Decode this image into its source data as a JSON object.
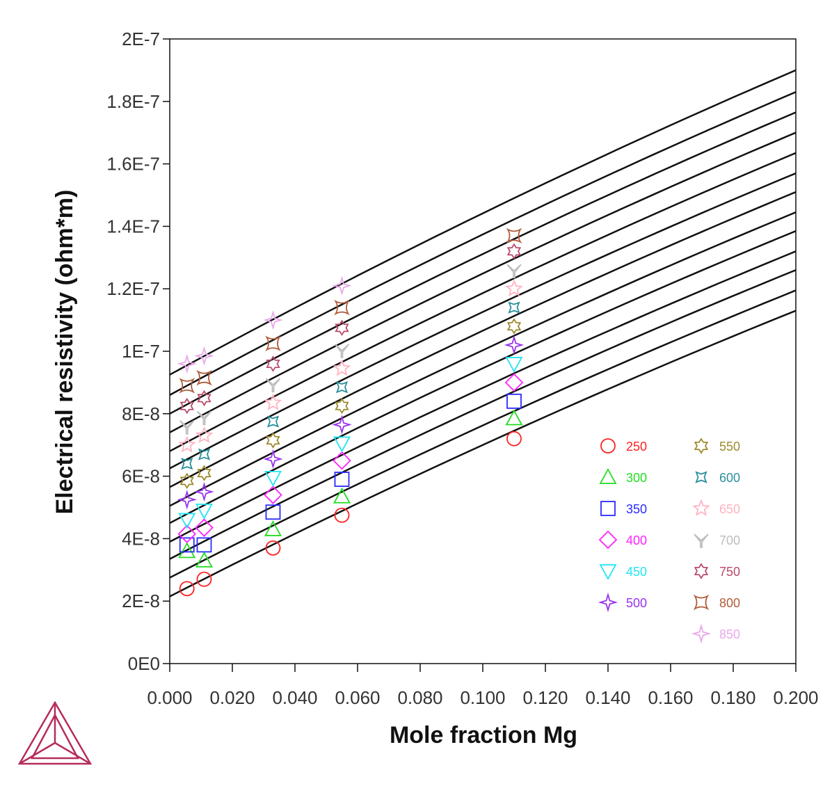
{
  "chart_data": {
    "type": "scatter",
    "xlabel": "Mole fraction Mg",
    "ylabel": "Electrical resistivity (ohm*m)",
    "xlim": [
      0,
      0.2
    ],
    "ylim": [
      0,
      2e-07
    ],
    "xticks": [
      "0.000",
      "0.020",
      "0.040",
      "0.060",
      "0.080",
      "0.100",
      "0.120",
      "0.140",
      "0.160",
      "0.180",
      "0.200"
    ],
    "yticks": [
      "0E0",
      "2E-8",
      "4E-8",
      "6E-8",
      "8E-8",
      "1E-7",
      "1.2E-7",
      "1.4E-7",
      "1.6E-7",
      "1.8E-7",
      "2E-7"
    ],
    "legend_position": "lower-right",
    "grid": false,
    "lines": [
      {
        "y0": 2.15e-08,
        "y1": 1.13e-07
      },
      {
        "y0": 2.75e-08,
        "y1": 1.195e-07
      },
      {
        "y0": 3.35e-08,
        "y1": 1.26e-07
      },
      {
        "y0": 3.9e-08,
        "y1": 1.32e-07
      },
      {
        "y0": 4.5e-08,
        "y1": 1.385e-07
      },
      {
        "y0": 5.05e-08,
        "y1": 1.445e-07
      },
      {
        "y0": 5.65e-08,
        "y1": 1.51e-07
      },
      {
        "y0": 6.25e-08,
        "y1": 1.57e-07
      },
      {
        "y0": 6.8e-08,
        "y1": 1.635e-07
      },
      {
        "y0": 7.4e-08,
        "y1": 1.7e-07
      },
      {
        "y0": 8e-08,
        "y1": 1.765e-07
      },
      {
        "y0": 8.6e-08,
        "y1": 1.83e-07
      },
      {
        "y0": 9.25e-08,
        "y1": 1.9e-07
      }
    ],
    "series": [
      {
        "name": "250",
        "color": "#ff2020",
        "marker": "circle",
        "points": [
          [
            0.0055,
            2.4e-08
          ],
          [
            0.011,
            2.7e-08
          ],
          [
            0.033,
            3.7e-08
          ],
          [
            0.055,
            4.75e-08
          ],
          [
            0.11,
            7.2e-08
          ]
        ]
      },
      {
        "name": "300",
        "color": "#22dd22",
        "marker": "triangle",
        "points": [
          [
            0.0055,
            3.6e-08
          ],
          [
            0.011,
            3.3e-08
          ],
          [
            0.033,
            4.3e-08
          ],
          [
            0.055,
            5.35e-08
          ],
          [
            0.11,
            7.85e-08
          ]
        ]
      },
      {
        "name": "350",
        "color": "#2a2aff",
        "marker": "square",
        "points": [
          [
            0.0055,
            3.8e-08
          ],
          [
            0.011,
            3.8e-08
          ],
          [
            0.033,
            4.85e-08
          ],
          [
            0.055,
            5.9e-08
          ],
          [
            0.11,
            8.4e-08
          ]
        ]
      },
      {
        "name": "400",
        "color": "#ff22ff",
        "marker": "diamond",
        "points": [
          [
            0.0055,
            4.15e-08
          ],
          [
            0.011,
            4.35e-08
          ],
          [
            0.033,
            5.4e-08
          ],
          [
            0.055,
            6.5e-08
          ],
          [
            0.11,
            9e-08
          ]
        ]
      },
      {
        "name": "450",
        "color": "#22e5f5",
        "marker": "triangle-down",
        "points": [
          [
            0.0055,
            4.6e-08
          ],
          [
            0.011,
            4.9e-08
          ],
          [
            0.033,
            5.95e-08
          ],
          [
            0.055,
            7.05e-08
          ],
          [
            0.11,
            9.6e-08
          ]
        ]
      },
      {
        "name": "500",
        "color": "#9933ee",
        "marker": "star4",
        "points": [
          [
            0.0055,
            5.25e-08
          ],
          [
            0.011,
            5.5e-08
          ],
          [
            0.033,
            6.55e-08
          ],
          [
            0.055,
            7.65e-08
          ],
          [
            0.11,
            1.02e-07
          ]
        ]
      },
      {
        "name": "550",
        "color": "#9c8a2c",
        "marker": "star6",
        "points": [
          [
            0.0055,
            5.85e-08
          ],
          [
            0.011,
            6.1e-08
          ],
          [
            0.033,
            7.15e-08
          ],
          [
            0.055,
            8.25e-08
          ],
          [
            0.11,
            1.08e-07
          ]
        ]
      },
      {
        "name": "600",
        "color": "#2a8f9a",
        "marker": "star4c",
        "points": [
          [
            0.0055,
            6.4e-08
          ],
          [
            0.011,
            6.7e-08
          ],
          [
            0.033,
            7.75e-08
          ],
          [
            0.055,
            8.85e-08
          ],
          [
            0.11,
            1.14e-07
          ]
        ]
      },
      {
        "name": "650",
        "color": "#ffb3c0",
        "marker": "star5",
        "points": [
          [
            0.0055,
            7e-08
          ],
          [
            0.011,
            7.3e-08
          ],
          [
            0.033,
            8.35e-08
          ],
          [
            0.055,
            9.45e-08
          ],
          [
            0.11,
            1.2e-07
          ]
        ]
      },
      {
        "name": "700",
        "color": "#bdbdbd",
        "marker": "tri3",
        "points": [
          [
            0.0055,
            7.6e-08
          ],
          [
            0.011,
            7.9e-08
          ],
          [
            0.033,
            8.95e-08
          ],
          [
            0.055,
            1.005e-07
          ],
          [
            0.11,
            1.26e-07
          ]
        ]
      },
      {
        "name": "750",
        "color": "#b84a6a",
        "marker": "star6",
        "points": [
          [
            0.0055,
            8.25e-08
          ],
          [
            0.011,
            8.5e-08
          ],
          [
            0.033,
            9.6e-08
          ],
          [
            0.055,
            1.075e-07
          ],
          [
            0.11,
            1.32e-07
          ]
        ]
      },
      {
        "name": "800",
        "color": "#b05a3a",
        "marker": "square-c",
        "points": [
          [
            0.0055,
            8.9e-08
          ],
          [
            0.011,
            9.15e-08
          ],
          [
            0.033,
            1.025e-07
          ],
          [
            0.055,
            1.14e-07
          ],
          [
            0.11,
            1.37e-07
          ]
        ]
      },
      {
        "name": "850",
        "color": "#e9a8e9",
        "marker": "star4",
        "points": [
          [
            0.0055,
            9.6e-08
          ],
          [
            0.011,
            9.85e-08
          ],
          [
            0.033,
            1.1e-07
          ],
          [
            0.055,
            1.21e-07
          ]
        ]
      }
    ]
  },
  "logo": {
    "name": "thermo-calc-triangle-logo",
    "color": "#b52d5a"
  }
}
